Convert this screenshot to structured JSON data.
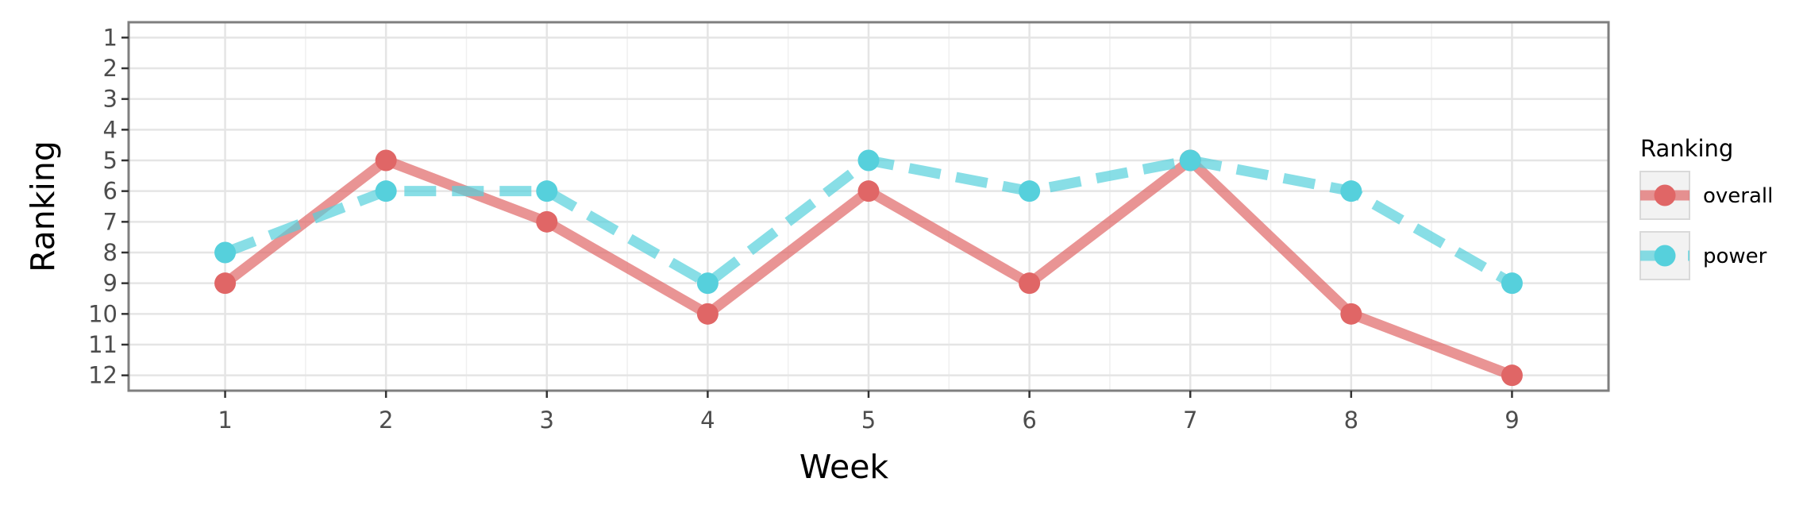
{
  "chart_data": {
    "type": "line",
    "title": "",
    "xlabel": "Week",
    "ylabel": "Ranking",
    "x": [
      1,
      2,
      3,
      4,
      5,
      6,
      7,
      8,
      9
    ],
    "xlim": [
      0.4,
      9.6
    ],
    "ylim": [
      12.5,
      0.5
    ],
    "y_reversed": true,
    "xticks": [
      "1",
      "2",
      "3",
      "4",
      "5",
      "6",
      "7",
      "8",
      "9"
    ],
    "yticks": [
      "1",
      "2",
      "3",
      "4",
      "5",
      "6",
      "7",
      "8",
      "9",
      "10",
      "11",
      "12"
    ],
    "grid": true,
    "legend": {
      "title": "Ranking",
      "position": "right"
    },
    "series": [
      {
        "name": "overall",
        "values": [
          9,
          5,
          7,
          10,
          6,
          9,
          5,
          10,
          12
        ],
        "color": "#e06666",
        "dash": "solid"
      },
      {
        "name": "power",
        "values": [
          8,
          6,
          6,
          9,
          5,
          6,
          5,
          6,
          9
        ],
        "color": "#56d0dc",
        "dash": "dashed"
      }
    ]
  }
}
